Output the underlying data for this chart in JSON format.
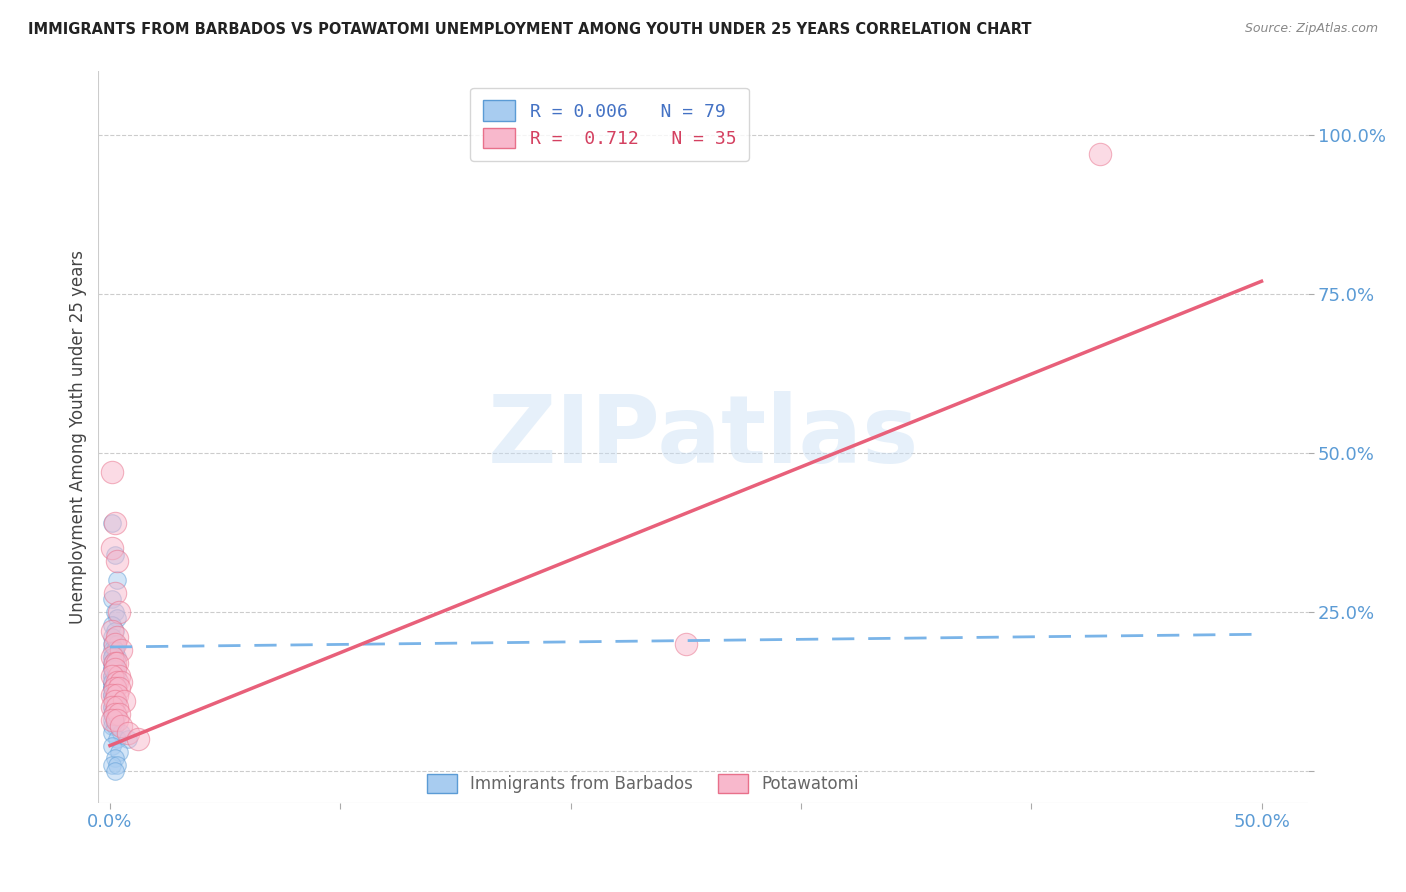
{
  "title": "IMMIGRANTS FROM BARBADOS VS POTAWATOMI UNEMPLOYMENT AMONG YOUTH UNDER 25 YEARS CORRELATION CHART",
  "source": "Source: ZipAtlas.com",
  "ylabel_label": "Unemployment Among Youth under 25 years",
  "xlim": [
    -0.005,
    0.52
  ],
  "ylim": [
    -0.05,
    1.1
  ],
  "x_ticks": [
    0.0,
    0.1,
    0.2,
    0.3,
    0.4,
    0.5
  ],
  "x_tick_labels": [
    "0.0%",
    "",
    "",
    "",
    "",
    "50.0%"
  ],
  "y_ticks": [
    0.0,
    0.25,
    0.5,
    0.75,
    1.0
  ],
  "y_tick_labels": [
    "",
    "25.0%",
    "50.0%",
    "75.0%",
    "100.0%"
  ],
  "watermark": "ZIPatlas",
  "background_color": "#ffffff",
  "grid_color": "#cccccc",
  "tick_color": "#5b9bd5",
  "blue_scatter_x": [
    0.001,
    0.002,
    0.003,
    0.001,
    0.002,
    0.003,
    0.001,
    0.002,
    0.001,
    0.002,
    0.001,
    0.003,
    0.002,
    0.001,
    0.002,
    0.003,
    0.001,
    0.002,
    0.001,
    0.002,
    0.001,
    0.002,
    0.001,
    0.003,
    0.001,
    0.002,
    0.001,
    0.002,
    0.001,
    0.003,
    0.002,
    0.001,
    0.002,
    0.001,
    0.003,
    0.002,
    0.001,
    0.002,
    0.001,
    0.002,
    0.001,
    0.002,
    0.001,
    0.002,
    0.001,
    0.003,
    0.002,
    0.001,
    0.002,
    0.001,
    0.002,
    0.001,
    0.002,
    0.001,
    0.003,
    0.002,
    0.001,
    0.002,
    0.001,
    0.002,
    0.001,
    0.002,
    0.001,
    0.003,
    0.002,
    0.001,
    0.002,
    0.001,
    0.002,
    0.001,
    0.005,
    0.003,
    0.008,
    0.001,
    0.004,
    0.002,
    0.001,
    0.003,
    0.002
  ],
  "blue_scatter_y": [
    0.39,
    0.34,
    0.3,
    0.27,
    0.25,
    0.24,
    0.23,
    0.22,
    0.21,
    0.2,
    0.2,
    0.2,
    0.19,
    0.19,
    0.19,
    0.18,
    0.18,
    0.18,
    0.18,
    0.17,
    0.17,
    0.17,
    0.17,
    0.16,
    0.16,
    0.16,
    0.16,
    0.16,
    0.15,
    0.15,
    0.15,
    0.15,
    0.15,
    0.14,
    0.14,
    0.14,
    0.14,
    0.14,
    0.14,
    0.13,
    0.13,
    0.13,
    0.13,
    0.13,
    0.13,
    0.13,
    0.12,
    0.12,
    0.12,
    0.12,
    0.12,
    0.12,
    0.11,
    0.11,
    0.11,
    0.11,
    0.1,
    0.1,
    0.1,
    0.1,
    0.09,
    0.09,
    0.09,
    0.09,
    0.08,
    0.08,
    0.08,
    0.07,
    0.07,
    0.06,
    0.06,
    0.05,
    0.05,
    0.04,
    0.03,
    0.02,
    0.01,
    0.01,
    0.0
  ],
  "pink_scatter_x": [
    0.001,
    0.002,
    0.001,
    0.003,
    0.002,
    0.004,
    0.001,
    0.003,
    0.002,
    0.005,
    0.001,
    0.002,
    0.003,
    0.002,
    0.004,
    0.001,
    0.003,
    0.005,
    0.002,
    0.004,
    0.001,
    0.003,
    0.002,
    0.006,
    0.001,
    0.003,
    0.002,
    0.004,
    0.001,
    0.003,
    0.005,
    0.008,
    0.012,
    0.43,
    0.25
  ],
  "pink_scatter_y": [
    0.47,
    0.39,
    0.35,
    0.33,
    0.28,
    0.25,
    0.22,
    0.21,
    0.2,
    0.19,
    0.18,
    0.17,
    0.17,
    0.16,
    0.15,
    0.15,
    0.14,
    0.14,
    0.13,
    0.13,
    0.12,
    0.12,
    0.11,
    0.11,
    0.1,
    0.1,
    0.09,
    0.09,
    0.08,
    0.08,
    0.07,
    0.06,
    0.05,
    0.97,
    0.2
  ],
  "blue_line_x": [
    0.0,
    0.5
  ],
  "blue_line_y": [
    0.195,
    0.215
  ],
  "pink_line_x": [
    0.0,
    0.5
  ],
  "pink_line_y": [
    0.04,
    0.77
  ],
  "legend1_label1": "R = 0.006   N = 79",
  "legend1_label2": "R =  0.712   N = 35",
  "legend2_label1": "Immigrants from Barbados",
  "legend2_label2": "Potawatomi"
}
